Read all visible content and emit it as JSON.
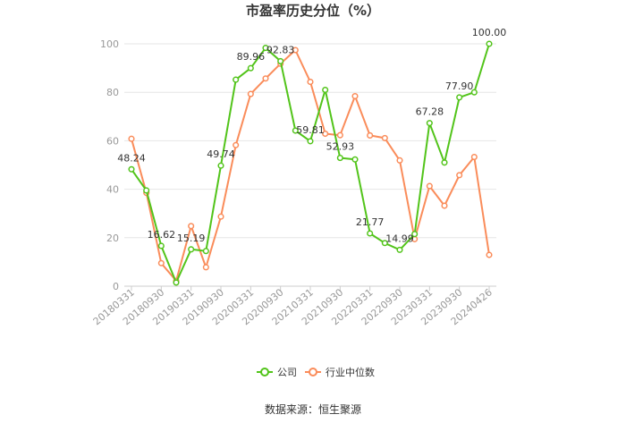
{
  "chart_data": {
    "type": "line",
    "title": "市盈率历史分位（%）",
    "xlabel": "",
    "ylabel": "",
    "ylim": [
      0,
      100
    ],
    "y_ticks": [
      0,
      20,
      40,
      60,
      80,
      100
    ],
    "x_tick_labels": [
      "20180331",
      "20180930",
      "20190331",
      "20190930",
      "20200331",
      "20200930",
      "20210331",
      "20210930",
      "20220331",
      "20220930",
      "20230331",
      "20230930",
      "20240426"
    ],
    "x": [
      "20180331",
      "20180630",
      "20180930",
      "20181231",
      "20190331",
      "20190630",
      "20190930",
      "20191231",
      "20200331",
      "20200630",
      "20200930",
      "20201231",
      "20210331",
      "20210630",
      "20210930",
      "20211231",
      "20220331",
      "20220630",
      "20220930",
      "20221231",
      "20230331",
      "20230630",
      "20230930",
      "20231231",
      "20240426"
    ],
    "series": [
      {
        "name": "公司",
        "color": "#52c41a",
        "values": [
          48.24,
          39.5,
          16.62,
          1.5,
          15.19,
          14.5,
          49.74,
          85.2,
          89.96,
          98.3,
          92.83,
          64.2,
          59.81,
          81.0,
          52.93,
          52.3,
          21.77,
          17.8,
          14.99,
          21.5,
          67.28,
          51.0,
          77.9,
          80.0,
          100.0
        ],
        "labels": [
          "48.24",
          "",
          "16.62",
          "",
          "15.19",
          "",
          "49.74",
          "",
          "89.96",
          "",
          "92.83",
          "",
          "59.81",
          "",
          "52.93",
          "",
          "21.77",
          "",
          "14.99",
          "",
          "67.28",
          "",
          "77.90",
          "",
          "100.00"
        ]
      },
      {
        "name": "行业中位数",
        "color": "#fa8c5a",
        "values": [
          60.8,
          38.5,
          9.5,
          2.2,
          24.8,
          7.8,
          28.7,
          58.2,
          79.3,
          85.7,
          91.8,
          97.4,
          84.3,
          62.9,
          62.3,
          78.4,
          62.2,
          61.1,
          51.9,
          19.4,
          41.3,
          33.2,
          45.8,
          53.3,
          12.9
        ]
      }
    ],
    "legend_position": "bottom",
    "grid": "horizontal"
  },
  "source_text": "数据来源：恒生聚源"
}
